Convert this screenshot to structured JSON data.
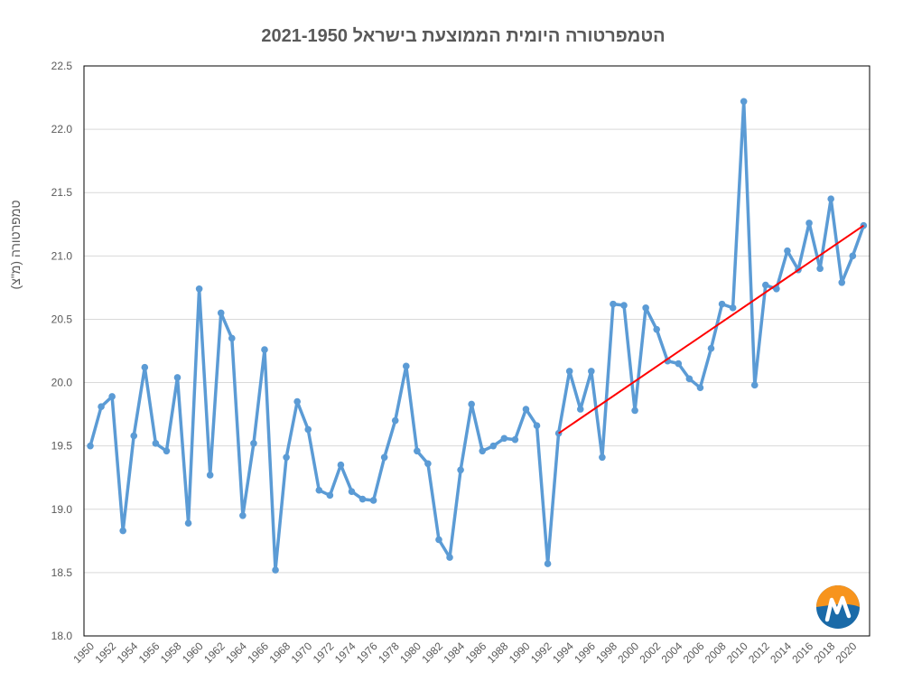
{
  "chart_data": {
    "type": "line",
    "title": "הטמפרטורה היומית הממוצעת בישראל 2021-1950",
    "xlabel": "",
    "ylabel": "טמפרטורה (מ\"צ)",
    "ylim": [
      18.0,
      22.5
    ],
    "yticks": [
      "18.0",
      "18.5",
      "19.0",
      "19.5",
      "20.0",
      "20.5",
      "21.0",
      "21.5",
      "22.0",
      "22.5"
    ],
    "xlim": [
      1950,
      2021
    ],
    "xticks": [
      1950,
      1952,
      1954,
      1956,
      1958,
      1960,
      1962,
      1964,
      1966,
      1968,
      1970,
      1972,
      1974,
      1976,
      1978,
      1980,
      1982,
      1984,
      1986,
      1988,
      1990,
      1992,
      1994,
      1996,
      1998,
      2000,
      2002,
      2004,
      2006,
      2008,
      2010,
      2012,
      2014,
      2016,
      2018,
      2020
    ],
    "grid": true,
    "series": [
      {
        "color": "#5b9bd5",
        "x": [
          1950,
          1951,
          1952,
          1953,
          1954,
          1955,
          1956,
          1957,
          1958,
          1959,
          1960,
          1961,
          1962,
          1963,
          1964,
          1965,
          1966,
          1967,
          1968,
          1969,
          1970,
          1971,
          1972,
          1973,
          1974,
          1975,
          1976,
          1977,
          1978,
          1979,
          1980,
          1981,
          1982,
          1983,
          1984,
          1985,
          1986,
          1987,
          1988,
          1989,
          1990,
          1991,
          1992,
          1993,
          1994,
          1995,
          1996,
          1997,
          1998,
          1999,
          2000,
          2001,
          2002,
          2003,
          2004,
          2005,
          2006,
          2007,
          2008,
          2009,
          2010,
          2011,
          2012,
          2013,
          2014,
          2015,
          2016,
          2017,
          2018,
          2019,
          2020,
          2021
        ],
        "values": [
          19.5,
          19.81,
          19.89,
          18.83,
          19.58,
          20.12,
          19.52,
          19.46,
          20.04,
          18.89,
          20.74,
          19.27,
          20.55,
          20.35,
          18.95,
          19.52,
          20.26,
          18.52,
          19.41,
          19.85,
          19.63,
          19.15,
          19.11,
          19.35,
          19.14,
          19.08,
          19.07,
          19.41,
          19.7,
          20.13,
          19.46,
          19.36,
          18.76,
          18.62,
          19.31,
          19.83,
          19.46,
          19.5,
          19.56,
          19.55,
          19.79,
          19.66,
          18.57,
          19.6,
          20.09,
          19.79,
          20.09,
          19.41,
          20.62,
          20.61,
          19.78,
          20.59,
          20.42,
          20.17,
          20.15,
          20.03,
          19.96,
          20.27,
          20.62,
          20.59,
          22.22,
          19.98,
          20.77,
          20.74,
          21.04,
          20.89,
          21.26,
          20.9,
          21.45,
          20.79,
          21.0,
          21.24
        ]
      }
    ],
    "trendline": {
      "color": "#ff0000",
      "x": [
        1993,
        2021
      ],
      "values": [
        19.6,
        21.24
      ]
    },
    "logo": {
      "colors": [
        "#f7941d",
        "#1a6aa8",
        "#ffffff"
      ]
    }
  }
}
